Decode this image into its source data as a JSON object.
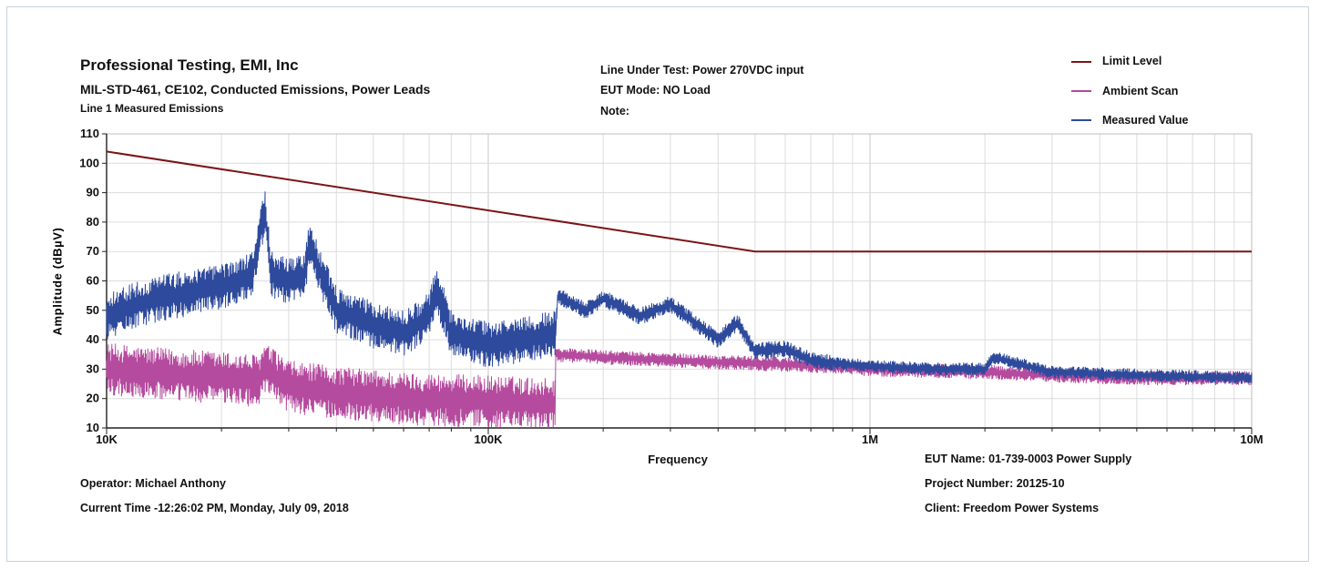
{
  "header": {
    "title": "Professional Testing, EMI, Inc",
    "subtitle": "MIL-STD-461, CE102, Conducted Emissions, Power Leads",
    "subtitle2": "Line 1 Measured Emissions",
    "line_under_test": "Line Under Test: Power 270VDC input",
    "eut_mode": "EUT Mode:  NO Load",
    "note": "Note:"
  },
  "footer": {
    "operator": "Operator: Michael Anthony",
    "current_time": "Current Time -12:26:02 PM, Monday, July 09, 2018",
    "eut_name": "EUT Name: 01-739-0003 Power Supply",
    "project_number": "Project Number: 20125-10",
    "client": "Client: Freedom Power Systems"
  },
  "chart_data": {
    "type": "line",
    "xlabel": "Frequency",
    "ylabel": "Amplitude (dBµV)",
    "x_scale": "log",
    "xlim": [
      10000,
      10000000
    ],
    "ylim": [
      10,
      110
    ],
    "x_tick_labels": [
      {
        "value": 10000,
        "label": "10K"
      },
      {
        "value": 100000,
        "label": "100K"
      },
      {
        "value": 1000000,
        "label": "1M"
      },
      {
        "value": 10000000,
        "label": "10M"
      }
    ],
    "y_ticks": [
      10,
      20,
      30,
      40,
      50,
      60,
      70,
      80,
      90,
      100,
      110
    ],
    "grid": true,
    "legend_position": "top-right",
    "series": [
      {
        "name": "Limit Level",
        "color": "#7b1416",
        "x": [
          10000,
          500000,
          10000000
        ],
        "y": [
          104,
          70,
          70
        ]
      },
      {
        "name": "Ambient Scan",
        "color": "#b54b9e",
        "x": [
          10000,
          12000,
          15000,
          20000,
          25000,
          26000,
          30000,
          40000,
          60000,
          100000,
          150000,
          150001,
          200000,
          300000,
          500000,
          800000,
          1000000,
          2000000,
          3000000,
          5000000,
          10000000
        ],
        "y": [
          30,
          29,
          28,
          27,
          26,
          30,
          24,
          22,
          20,
          19,
          18,
          35,
          34,
          33,
          32,
          31,
          30,
          29,
          28,
          27,
          27
        ]
      },
      {
        "name": "Measured Value",
        "color": "#2e4a9c",
        "x": [
          10000,
          12000,
          15000,
          20000,
          24000,
          26000,
          27000,
          30000,
          33000,
          34000,
          40000,
          50000,
          60000,
          70000,
          73000,
          80000,
          90000,
          100000,
          120000,
          150000,
          152000,
          180000,
          200000,
          250000,
          300000,
          400000,
          450000,
          500000,
          600000,
          700000,
          800000,
          1000000,
          1500000,
          2000000,
          2100000,
          3000000,
          5000000,
          10000000
        ],
        "y": [
          48,
          52,
          55,
          58,
          62,
          84,
          62,
          60,
          62,
          72,
          50,
          45,
          42,
          48,
          58,
          42,
          40,
          38,
          40,
          42,
          55,
          50,
          54,
          48,
          52,
          40,
          46,
          36,
          37,
          33,
          32,
          31,
          30,
          30,
          34,
          29,
          28,
          27
        ]
      }
    ]
  }
}
